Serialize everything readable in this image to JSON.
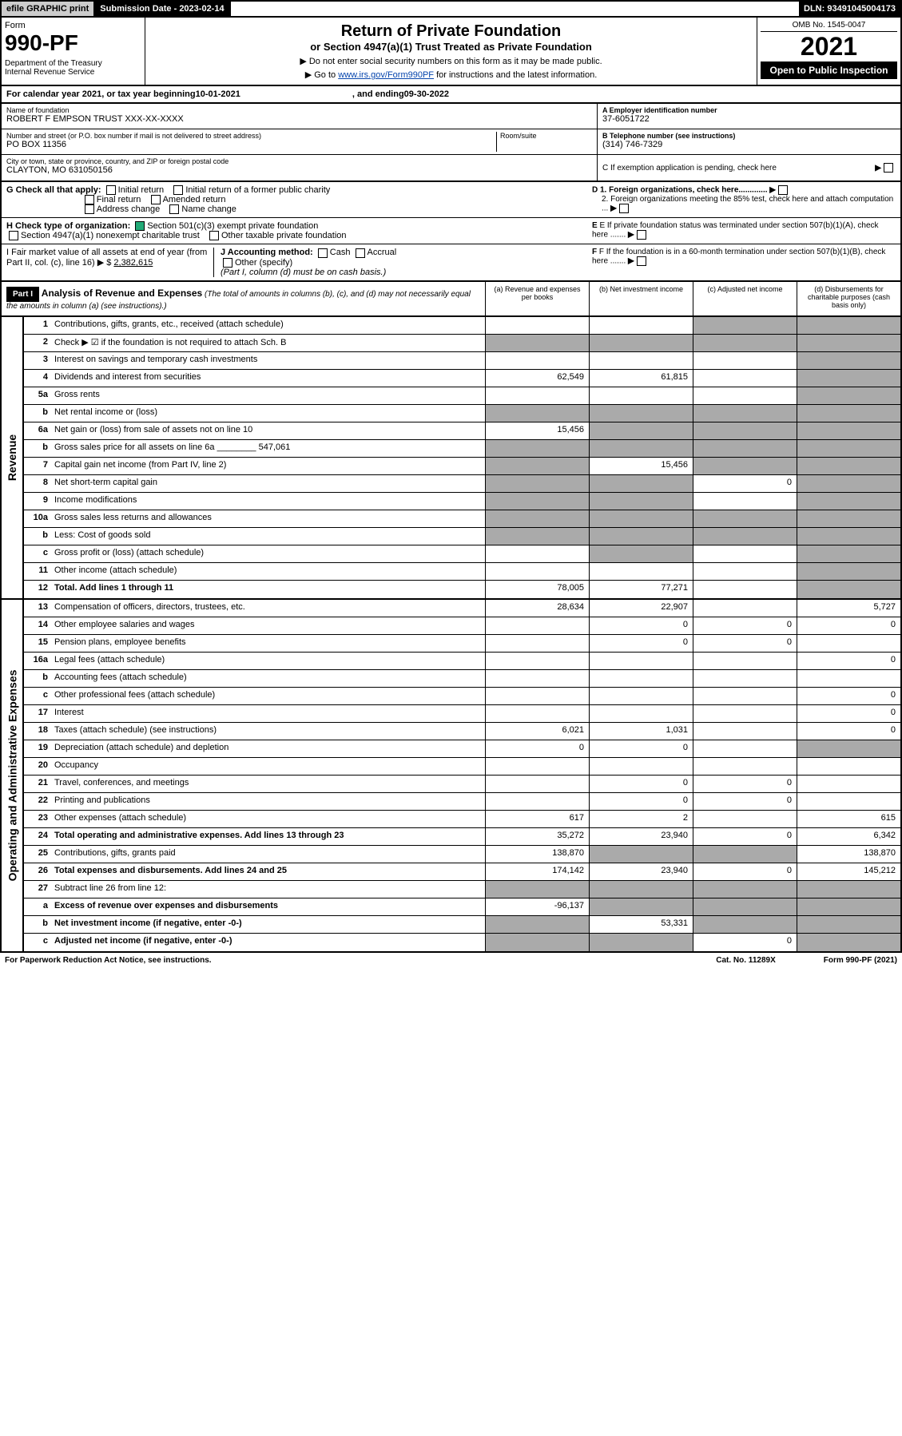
{
  "top": {
    "efile": "efile GRAPHIC print",
    "sub_label": "Submission Date - 2023-02-14",
    "dln": "DLN: 93491045004173"
  },
  "header": {
    "form_word": "Form",
    "form_no": "990-PF",
    "dept": "Department of the Treasury\nInternal Revenue Service",
    "title": "Return of Private Foundation",
    "subtitle": "or Section 4947(a)(1) Trust Treated as Private Foundation",
    "instr1": "▶ Do not enter social security numbers on this form as it may be made public.",
    "instr2_pre": "▶ Go to ",
    "instr2_link": "www.irs.gov/Form990PF",
    "instr2_post": " for instructions and the latest information.",
    "omb": "OMB No. 1545-0047",
    "year": "2021",
    "open": "Open to Public Inspection"
  },
  "calyear": {
    "pre": "For calendar year 2021, or tax year beginning ",
    "begin": "10-01-2021",
    "mid": " , and ending ",
    "end": "09-30-2022"
  },
  "info": {
    "name_label": "Name of foundation",
    "name": "ROBERT F EMPSON TRUST XXX-XX-XXXX",
    "addr_label": "Number and street (or P.O. box number if mail is not delivered to street address)",
    "addr": "PO BOX 11356",
    "room_label": "Room/suite",
    "city_label": "City or town, state or province, country, and ZIP or foreign postal code",
    "city": "CLAYTON, MO  631050156",
    "ein_label": "A Employer identification number",
    "ein": "37-6051722",
    "tel_label": "B Telephone number (see instructions)",
    "tel": "(314) 746-7329",
    "c_label": "C If exemption application is pending, check here"
  },
  "checks": {
    "g": "G Check all that apply:",
    "g_opts": [
      "Initial return",
      "Initial return of a former public charity",
      "Final return",
      "Amended return",
      "Address change",
      "Name change"
    ],
    "h": "H Check type of organization:",
    "h1": "Section 501(c)(3) exempt private foundation",
    "h2": "Section 4947(a)(1) nonexempt charitable trust",
    "h3": "Other taxable private foundation",
    "i": "I Fair market value of all assets at end of year (from Part II, col. (c), line 16) ▶ $ ",
    "i_val": "2,382,615",
    "j": "J Accounting method:",
    "j_cash": "Cash",
    "j_accr": "Accrual",
    "j_other": "Other (specify)",
    "j_note": "(Part I, column (d) must be on cash basis.)",
    "d1": "D 1. Foreign organizations, check here.............",
    "d2": "2. Foreign organizations meeting the 85% test, check here and attach computation ...",
    "e": "E If private foundation status was terminated under section 507(b)(1)(A), check here .......",
    "f": "F If the foundation is in a 60-month termination under section 507(b)(1)(B), check here ......."
  },
  "part1": {
    "label": "Part I",
    "title": "Analysis of Revenue and Expenses",
    "note": "(The total of amounts in columns (b), (c), and (d) may not necessarily equal the amounts in column (a) (see instructions).)",
    "cols": [
      "(a) Revenue and expenses per books",
      "(b) Net investment income",
      "(c) Adjusted net income",
      "(d) Disbursements for charitable purposes (cash basis only)"
    ]
  },
  "sides": {
    "rev": "Revenue",
    "exp": "Operating and Administrative Expenses"
  },
  "rows_rev": [
    {
      "n": "1",
      "d": "Contributions, gifts, grants, etc., received (attach schedule)",
      "a": "",
      "b": "",
      "c": "s",
      "dd": "s"
    },
    {
      "n": "2",
      "d": "Check ▶ ☑ if the foundation is not required to attach Sch. B",
      "a": "s",
      "b": "s",
      "c": "s",
      "dd": "s",
      "bold": false
    },
    {
      "n": "3",
      "d": "Interest on savings and temporary cash investments",
      "a": "",
      "b": "",
      "c": "",
      "dd": "s"
    },
    {
      "n": "4",
      "d": "Dividends and interest from securities",
      "a": "62,549",
      "b": "61,815",
      "c": "",
      "dd": "s"
    },
    {
      "n": "5a",
      "d": "Gross rents",
      "a": "",
      "b": "",
      "c": "",
      "dd": "s"
    },
    {
      "n": "b",
      "d": "Net rental income or (loss)",
      "a": "s",
      "b": "s",
      "c": "s",
      "dd": "s"
    },
    {
      "n": "6a",
      "d": "Net gain or (loss) from sale of assets not on line 10",
      "a": "15,456",
      "b": "s",
      "c": "s",
      "dd": "s"
    },
    {
      "n": "b",
      "d": "Gross sales price for all assets on line 6a ________ 547,061",
      "a": "s",
      "b": "s",
      "c": "s",
      "dd": "s"
    },
    {
      "n": "7",
      "d": "Capital gain net income (from Part IV, line 2)",
      "a": "s",
      "b": "15,456",
      "c": "s",
      "dd": "s"
    },
    {
      "n": "8",
      "d": "Net short-term capital gain",
      "a": "s",
      "b": "s",
      "c": "0",
      "dd": "s"
    },
    {
      "n": "9",
      "d": "Income modifications",
      "a": "s",
      "b": "s",
      "c": "",
      "dd": "s"
    },
    {
      "n": "10a",
      "d": "Gross sales less returns and allowances",
      "a": "s",
      "b": "s",
      "c": "s",
      "dd": "s"
    },
    {
      "n": "b",
      "d": "Less: Cost of goods sold",
      "a": "s",
      "b": "s",
      "c": "s",
      "dd": "s"
    },
    {
      "n": "c",
      "d": "Gross profit or (loss) (attach schedule)",
      "a": "",
      "b": "s",
      "c": "",
      "dd": "s"
    },
    {
      "n": "11",
      "d": "Other income (attach schedule)",
      "a": "",
      "b": "",
      "c": "",
      "dd": "s"
    },
    {
      "n": "12",
      "d": "Total. Add lines 1 through 11",
      "a": "78,005",
      "b": "77,271",
      "c": "",
      "dd": "s",
      "bold": true
    }
  ],
  "rows_exp": [
    {
      "n": "13",
      "d": "Compensation of officers, directors, trustees, etc.",
      "a": "28,634",
      "b": "22,907",
      "c": "",
      "dd": "5,727"
    },
    {
      "n": "14",
      "d": "Other employee salaries and wages",
      "a": "",
      "b": "0",
      "c": "0",
      "dd": "0"
    },
    {
      "n": "15",
      "d": "Pension plans, employee benefits",
      "a": "",
      "b": "0",
      "c": "0",
      "dd": ""
    },
    {
      "n": "16a",
      "d": "Legal fees (attach schedule)",
      "a": "",
      "b": "",
      "c": "",
      "dd": "0"
    },
    {
      "n": "b",
      "d": "Accounting fees (attach schedule)",
      "a": "",
      "b": "",
      "c": "",
      "dd": ""
    },
    {
      "n": "c",
      "d": "Other professional fees (attach schedule)",
      "a": "",
      "b": "",
      "c": "",
      "dd": "0"
    },
    {
      "n": "17",
      "d": "Interest",
      "a": "",
      "b": "",
      "c": "",
      "dd": "0"
    },
    {
      "n": "18",
      "d": "Taxes (attach schedule) (see instructions)",
      "a": "6,021",
      "b": "1,031",
      "c": "",
      "dd": "0"
    },
    {
      "n": "19",
      "d": "Depreciation (attach schedule) and depletion",
      "a": "0",
      "b": "0",
      "c": "",
      "dd": "s"
    },
    {
      "n": "20",
      "d": "Occupancy",
      "a": "",
      "b": "",
      "c": "",
      "dd": ""
    },
    {
      "n": "21",
      "d": "Travel, conferences, and meetings",
      "a": "",
      "b": "0",
      "c": "0",
      "dd": ""
    },
    {
      "n": "22",
      "d": "Printing and publications",
      "a": "",
      "b": "0",
      "c": "0",
      "dd": ""
    },
    {
      "n": "23",
      "d": "Other expenses (attach schedule)",
      "a": "617",
      "b": "2",
      "c": "",
      "dd": "615"
    },
    {
      "n": "24",
      "d": "Total operating and administrative expenses. Add lines 13 through 23",
      "a": "35,272",
      "b": "23,940",
      "c": "0",
      "dd": "6,342",
      "bold": true
    },
    {
      "n": "25",
      "d": "Contributions, gifts, grants paid",
      "a": "138,870",
      "b": "s",
      "c": "s",
      "dd": "138,870"
    },
    {
      "n": "26",
      "d": "Total expenses and disbursements. Add lines 24 and 25",
      "a": "174,142",
      "b": "23,940",
      "c": "0",
      "dd": "145,212",
      "bold": true
    },
    {
      "n": "27",
      "d": "Subtract line 26 from line 12:",
      "a": "s",
      "b": "s",
      "c": "s",
      "dd": "s"
    },
    {
      "n": "a",
      "d": "Excess of revenue over expenses and disbursements",
      "a": "-96,137",
      "b": "s",
      "c": "s",
      "dd": "s",
      "bold": true
    },
    {
      "n": "b",
      "d": "Net investment income (if negative, enter -0-)",
      "a": "s",
      "b": "53,331",
      "c": "s",
      "dd": "s",
      "bold": true
    },
    {
      "n": "c",
      "d": "Adjusted net income (if negative, enter -0-)",
      "a": "s",
      "b": "s",
      "c": "0",
      "dd": "s",
      "bold": true
    }
  ],
  "footer": {
    "left": "For Paperwork Reduction Act Notice, see instructions.",
    "mid": "Cat. No. 11289X",
    "right": "Form 990-PF (2021)"
  }
}
